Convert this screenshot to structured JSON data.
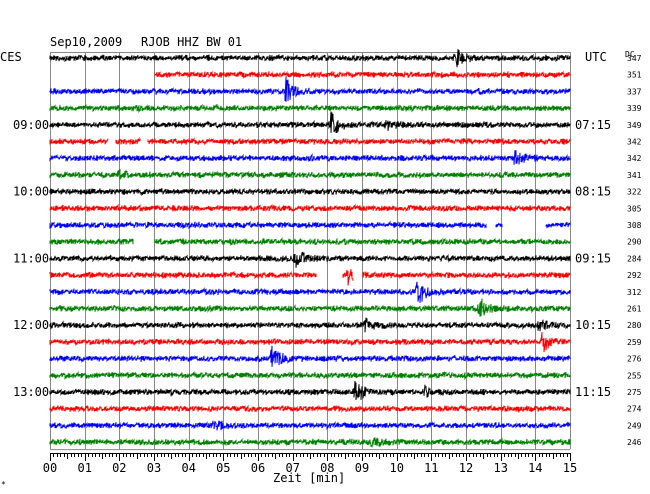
{
  "header": {
    "date": "Sep10,2009",
    "station": "RJOB HHZ BW 01",
    "left_zone": "CES",
    "right_zone": "UTC",
    "dc_label": "DC"
  },
  "footer": {
    "xlabel": "Zeit [min]",
    "corner_mark": "*"
  },
  "chart_data": {
    "type": "line",
    "title": "Sep10,2009   RJOB HHZ BW 01",
    "xlabel": "Zeit [min]",
    "xlim": [
      0,
      15
    ],
    "x_ticks": [
      "00",
      "01",
      "02",
      "03",
      "04",
      "05",
      "06",
      "07",
      "08",
      "09",
      "10",
      "11",
      "12",
      "13",
      "14",
      "15"
    ],
    "trace_colors": [
      "#000000",
      "#ff0000",
      "#0000ff",
      "#008000"
    ],
    "left_time_labels": [
      {
        "row": 4,
        "label": "09:00"
      },
      {
        "row": 8,
        "label": "10:00"
      },
      {
        "row": 12,
        "label": "11:00"
      },
      {
        "row": 16,
        "label": "12:00"
      },
      {
        "row": 20,
        "label": "13:00"
      }
    ],
    "right_time_labels": [
      {
        "row": 4,
        "label": "07:15"
      },
      {
        "row": 8,
        "label": "08:15"
      },
      {
        "row": 12,
        "label": "09:15"
      },
      {
        "row": 16,
        "label": "10:15"
      },
      {
        "row": 20,
        "label": "11:15"
      }
    ],
    "dc_values": [
      "347",
      "351",
      "337",
      "339",
      "349",
      "342",
      "342",
      "341",
      "322",
      "305",
      "308",
      "290",
      "284",
      "292",
      "312",
      "261",
      "280",
      "259",
      "276",
      "255",
      "275",
      "274",
      "249",
      "246"
    ],
    "trace_gaps": [
      {
        "row": 1,
        "start_min": 0.0,
        "end_min": 3.0
      },
      {
        "row": 5,
        "start_min": 1.7,
        "end_min": 1.9
      },
      {
        "row": 5,
        "start_min": 2.6,
        "end_min": 2.8
      },
      {
        "row": 10,
        "start_min": 12.6,
        "end_min": 12.85
      },
      {
        "row": 10,
        "start_min": 13.05,
        "end_min": 14.3
      },
      {
        "row": 11,
        "start_min": 2.4,
        "end_min": 3.0
      },
      {
        "row": 13,
        "start_min": 7.7,
        "end_min": 8.45
      },
      {
        "row": 13,
        "start_min": 8.75,
        "end_min": 9.0
      }
    ],
    "events": [
      {
        "row": 0,
        "min": 11.7,
        "amp": 10
      },
      {
        "row": 2,
        "min": 6.8,
        "amp": 12
      },
      {
        "row": 4,
        "min": 8.1,
        "amp": 13
      },
      {
        "row": 4,
        "min": 9.7,
        "amp": 5
      },
      {
        "row": 6,
        "min": 13.4,
        "amp": 9
      },
      {
        "row": 7,
        "min": 2.0,
        "amp": 5
      },
      {
        "row": 12,
        "min": 7.1,
        "amp": 9
      },
      {
        "row": 13,
        "min": 8.6,
        "amp": 9
      },
      {
        "row": 14,
        "min": 10.6,
        "amp": 14
      },
      {
        "row": 15,
        "min": 12.4,
        "amp": 12
      },
      {
        "row": 16,
        "min": 9.1,
        "amp": 6
      },
      {
        "row": 16,
        "min": 14.1,
        "amp": 5
      },
      {
        "row": 17,
        "min": 14.2,
        "amp": 10
      },
      {
        "row": 18,
        "min": 6.4,
        "amp": 13
      },
      {
        "row": 20,
        "min": 8.8,
        "amp": 12
      },
      {
        "row": 20,
        "min": 10.8,
        "amp": 5
      },
      {
        "row": 22,
        "min": 4.7,
        "amp": 5
      },
      {
        "row": 23,
        "min": 9.3,
        "amp": 5
      }
    ]
  }
}
